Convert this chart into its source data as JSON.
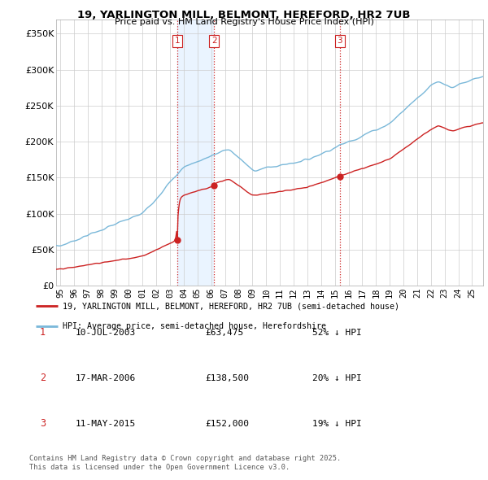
{
  "title1": "19, YARLINGTON MILL, BELMONT, HEREFORD, HR2 7UB",
  "title2": "Price paid vs. HM Land Registry's House Price Index (HPI)",
  "hpi_color": "#7ab8d9",
  "price_color": "#cc2222",
  "vline_color": "#cc2222",
  "grid_color": "#cccccc",
  "shade_color": "#ddeeff",
  "legend_label_price": "19, YARLINGTON MILL, BELMONT, HEREFORD, HR2 7UB (semi-detached house)",
  "legend_label_hpi": "HPI: Average price, semi-detached house, Herefordshire",
  "sale_points": [
    {
      "date": 2003.53,
      "price": 63475,
      "label": "1"
    },
    {
      "date": 2006.21,
      "price": 138500,
      "label": "2"
    },
    {
      "date": 2015.36,
      "price": 152000,
      "label": "3"
    }
  ],
  "table_data": [
    {
      "num": "1",
      "date": "10-JUL-2003",
      "price": "£63,475",
      "note": "52% ↓ HPI"
    },
    {
      "num": "2",
      "date": "17-MAR-2006",
      "price": "£138,500",
      "note": "20% ↓ HPI"
    },
    {
      "num": "3",
      "date": "11-MAY-2015",
      "price": "£152,000",
      "note": "19% ↓ HPI"
    }
  ],
  "footer": "Contains HM Land Registry data © Crown copyright and database right 2025.\nThis data is licensed under the Open Government Licence v3.0.",
  "xlim_start": 1994.7,
  "xlim_end": 2025.8,
  "ylim_min": 0,
  "ylim_max": 370000,
  "yticks": [
    0,
    50000,
    100000,
    150000,
    200000,
    250000,
    300000,
    350000
  ],
  "ytick_labels": [
    "£0",
    "£50K",
    "£100K",
    "£150K",
    "£200K",
    "£250K",
    "£300K",
    "£350K"
  ],
  "xtick_years": [
    1995,
    1996,
    1997,
    1998,
    1999,
    2000,
    2001,
    2002,
    2003,
    2004,
    2005,
    2006,
    2007,
    2008,
    2009,
    2010,
    2011,
    2012,
    2013,
    2014,
    2015,
    2016,
    2017,
    2018,
    2019,
    2020,
    2021,
    2022,
    2023,
    2024,
    2025
  ]
}
